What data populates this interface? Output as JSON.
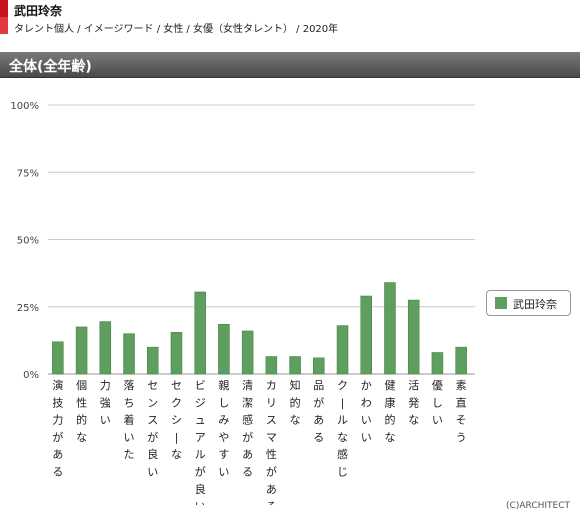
{
  "header": {
    "talent_name": "武田玲奈",
    "breadcrumb": "タレント個人 / イメージワード / 女性 / 女優（女性タレント） / 2020年"
  },
  "section": {
    "title": "全体(全年齢)"
  },
  "colors": {
    "bar": "#5e9e5e",
    "bar_edge": "#3f7d3f",
    "grid": "#cccccc",
    "accent_red": "#c8141e"
  },
  "chart_data": {
    "type": "bar",
    "categories": [
      "演技力がある",
      "個性的な",
      "力強い",
      "落ち着いた",
      "センスが良い",
      "セクシーな",
      "ビジュアルが良い",
      "親しみやすい",
      "清潔感がある",
      "カリスマ性がある",
      "知的な",
      "品がある",
      "クールな感じ",
      "かわいい",
      "健康的な",
      "活発な",
      "優しい",
      "素直そう"
    ],
    "y_ticks": [
      "0%",
      "25%",
      "50%",
      "75%",
      "100%"
    ],
    "ylim": [
      0,
      100
    ],
    "series": [
      {
        "name": "武田玲奈",
        "values": [
          12,
          17.5,
          19.5,
          15,
          10,
          15.5,
          30.5,
          18.5,
          16,
          6.5,
          6.5,
          6,
          18,
          29,
          34,
          27.5,
          8,
          10
        ]
      }
    ],
    "grid": true,
    "legend_position": "right"
  },
  "footer": {
    "copyright": "(C)ARCHITECT"
  }
}
